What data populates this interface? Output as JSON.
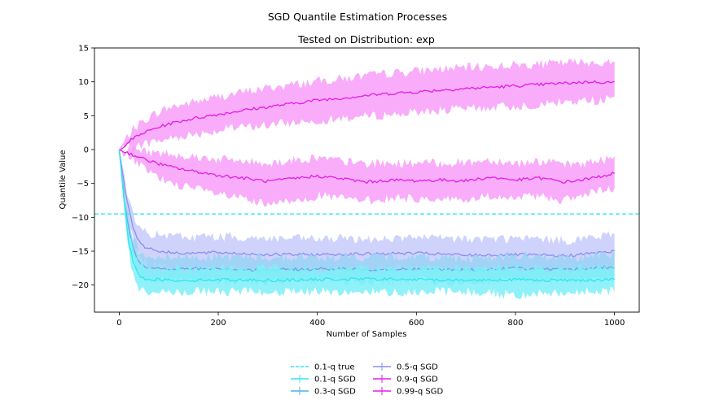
{
  "chart_data": {
    "type": "line",
    "suptitle": "SGD Quantile Estimation Processes",
    "title": "Tested on Distribution: exp",
    "xlabel": "Number of Samples",
    "ylabel": "Quantile Value",
    "xlim": [
      -50,
      1050
    ],
    "ylim": [
      -24,
      15
    ],
    "xticks": [
      0,
      200,
      400,
      600,
      800,
      1000
    ],
    "yticks": [
      -20,
      -15,
      -10,
      -5,
      0,
      5,
      10,
      15
    ],
    "xtick_labels": [
      "0",
      "200",
      "400",
      "600",
      "800",
      "1000"
    ],
    "ytick_labels": [
      "−20",
      "−15",
      "−10",
      "−5",
      "0",
      "5",
      "10",
      "15"
    ],
    "legend_position": "below-center",
    "true_lines": [
      {
        "name": "0.1-q true",
        "value": -9.5,
        "color": "#2ee6f0"
      }
    ],
    "series": [
      {
        "name": "0.1-q SGD",
        "color": "#2ee6f0",
        "band_color": "#7df0f7",
        "x": [
          0,
          10,
          20,
          30,
          40,
          50,
          75,
          100,
          150,
          200,
          300,
          400,
          500,
          600,
          700,
          800,
          900,
          1000
        ],
        "mean": [
          0,
          -8,
          -14,
          -17,
          -18.5,
          -19,
          -19.2,
          -19.3,
          -19.3,
          -19.2,
          -19.3,
          -19.2,
          -19.1,
          -19.2,
          -19.3,
          -19.2,
          -19.3,
          -19.2
        ],
        "lower": [
          0,
          -9,
          -15.5,
          -19,
          -20.5,
          -21,
          -21,
          -21,
          -21,
          -21,
          -21,
          -21,
          -21,
          -21,
          -21,
          -21.5,
          -21,
          -21
        ],
        "upper": [
          0,
          -7,
          -12.5,
          -15.5,
          -17,
          -17.5,
          -17.8,
          -17.8,
          -17.7,
          -17.7,
          -17.5,
          -17.7,
          -17.6,
          -17.7,
          -17.6,
          -17.5,
          -17.7,
          -17.5
        ]
      },
      {
        "name": "0.3-q SGD",
        "color": "#4cb1ec",
        "band_color": "#9ad2f5",
        "x": [
          0,
          10,
          20,
          30,
          40,
          50,
          75,
          100,
          150,
          200,
          300,
          400,
          500,
          600,
          700,
          800,
          900,
          1000
        ],
        "mean": [
          0,
          -7,
          -12,
          -15,
          -16.5,
          -17.2,
          -17.6,
          -17.7,
          -17.6,
          -17.6,
          -17.8,
          -17.6,
          -17.7,
          -17.6,
          -17.8,
          -17.5,
          -17.8,
          -17.3
        ],
        "lower": [
          0,
          -8,
          -13.5,
          -16.8,
          -18.2,
          -19,
          -19.2,
          -19.3,
          -19.3,
          -19.4,
          -19.5,
          -19.3,
          -19.5,
          -19.4,
          -19.6,
          -19.3,
          -19.5,
          -19.2
        ],
        "upper": [
          0,
          -6,
          -10.5,
          -13.2,
          -14.8,
          -15.5,
          -15.8,
          -16,
          -15.8,
          -15.8,
          -15.9,
          -15.9,
          -15.9,
          -15.8,
          -16,
          -15.7,
          -16,
          -15.5
        ]
      },
      {
        "name": "0.5-q SGD",
        "color": "#8a8ef0",
        "band_color": "#c7cbfa",
        "x": [
          0,
          10,
          20,
          30,
          40,
          50,
          75,
          100,
          150,
          200,
          300,
          400,
          500,
          600,
          700,
          800,
          900,
          1000
        ],
        "mean": [
          0,
          -5,
          -9,
          -12,
          -13.5,
          -14.3,
          -14.9,
          -15.2,
          -15.3,
          -15.2,
          -15.5,
          -15.5,
          -15.4,
          -15.3,
          -15.6,
          -15.5,
          -15.7,
          -15
        ],
        "lower": [
          0,
          -6,
          -10.5,
          -13.8,
          -15.5,
          -16.5,
          -17.2,
          -17.5,
          -17.6,
          -17.5,
          -17.8,
          -17.8,
          -17.6,
          -17.6,
          -17.9,
          -17.8,
          -18,
          -17.3
        ],
        "upper": [
          0,
          -4,
          -7.5,
          -10.2,
          -11.5,
          -12.2,
          -12.6,
          -12.8,
          -12.9,
          -12.8,
          -13.1,
          -13.2,
          -13.2,
          -13,
          -13.2,
          -13.1,
          -13.4,
          -12.6
        ]
      },
      {
        "name": "0.9-q SGD",
        "color": "#e21ee6",
        "band_color": "#f79df9",
        "x": [
          0,
          25,
          50,
          75,
          100,
          150,
          200,
          250,
          300,
          350,
          400,
          450,
          500,
          550,
          600,
          650,
          700,
          750,
          800,
          850,
          900,
          950,
          1000
        ],
        "mean": [
          0,
          -0.7,
          -1.4,
          -2.0,
          -2.5,
          -3.2,
          -3.8,
          -4.2,
          -4.7,
          -4.3,
          -3.9,
          -4.3,
          -4.8,
          -4.5,
          -4.6,
          -4.5,
          -4.6,
          -4.1,
          -4.5,
          -4.2,
          -4.8,
          -4.3,
          -3.5
        ],
        "lower": [
          0,
          -1.3,
          -2.8,
          -4.0,
          -4.8,
          -5.8,
          -6.6,
          -7.3,
          -8.3,
          -7.5,
          -6.8,
          -7.2,
          -7.6,
          -7.1,
          -7.3,
          -7.2,
          -7.5,
          -6.8,
          -7.3,
          -6.8,
          -7.5,
          -6.5,
          -5.8
        ],
        "upper": [
          0,
          0.2,
          -0.2,
          -0.5,
          -0.6,
          -1.0,
          -1.4,
          -1.7,
          -2.0,
          -1.6,
          -1.2,
          -1.7,
          -2.1,
          -2.0,
          -2.0,
          -2.0,
          -1.9,
          -1.5,
          -2.0,
          -1.7,
          -2.3,
          -1.9,
          -1.2
        ]
      },
      {
        "name": "0.99-q SGD",
        "color": "#e21ee6",
        "band_color": "#f79df9",
        "x": [
          0,
          25,
          50,
          75,
          100,
          150,
          200,
          250,
          300,
          350,
          400,
          450,
          500,
          550,
          600,
          650,
          700,
          750,
          800,
          850,
          900,
          950,
          1000
        ],
        "mean": [
          0,
          1.5,
          2.5,
          3.2,
          3.8,
          4.6,
          5.2,
          5.8,
          6.3,
          6.8,
          7.3,
          7.6,
          8.0,
          8.3,
          8.5,
          8.8,
          9.0,
          9.2,
          9.4,
          9.6,
          9.8,
          10.0,
          9.9
        ],
        "lower": [
          0,
          0.3,
          0.8,
          1.2,
          1.6,
          2.3,
          2.8,
          3.3,
          3.6,
          4.0,
          4.3,
          4.6,
          4.9,
          5.2,
          5.5,
          5.8,
          6.0,
          6.2,
          6.4,
          6.7,
          7.0,
          7.2,
          7.5
        ],
        "upper": [
          0,
          2.8,
          4.3,
          5.4,
          6.2,
          7.0,
          7.8,
          8.5,
          9.1,
          9.6,
          10.1,
          10.5,
          10.9,
          11.3,
          11.6,
          11.9,
          12.1,
          12.3,
          12.5,
          12.6,
          12.8,
          12.9,
          12.7
        ]
      }
    ]
  }
}
